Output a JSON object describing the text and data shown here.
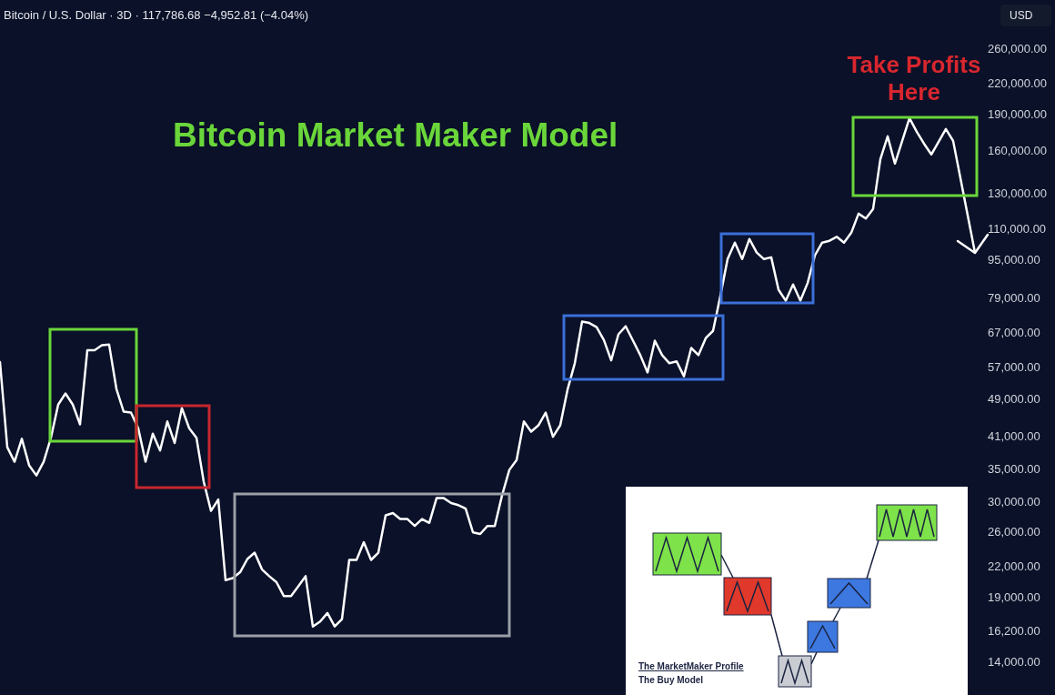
{
  "chart_data": {
    "type": "line",
    "title": "Bitcoin Market Maker Model",
    "subtitle": "Bitcoin / U.S. Dollar · 3D · 117,786.68 −4,952.81 (−4.04%)",
    "annotations": [
      "Take Profits Here",
      "USD",
      "The MarketMaker Profile",
      "The Buy Model"
    ],
    "categories": [
      null,
      null,
      null,
      null,
      null,
      null,
      null,
      null,
      null,
      null,
      null,
      null,
      null,
      null,
      null,
      null,
      null,
      null,
      null,
      null,
      null,
      null,
      null,
      null,
      null,
      null,
      null,
      null,
      null,
      null,
      null,
      null,
      null,
      null,
      null,
      null,
      null,
      null,
      null,
      null,
      null,
      null,
      null,
      null,
      null,
      null,
      null,
      null,
      null,
      null,
      null,
      null,
      null,
      null,
      null,
      null,
      null,
      null,
      null,
      null,
      null,
      null,
      null,
      null,
      null,
      null,
      null,
      null,
      null,
      null,
      null,
      null,
      null,
      null,
      null,
      null,
      null,
      null,
      null,
      null,
      null,
      null,
      null,
      null,
      null,
      null,
      null,
      null,
      null,
      null,
      null,
      null,
      null,
      null,
      null,
      null,
      null,
      null,
      null,
      null,
      null,
      null,
      null,
      null,
      null,
      null,
      null,
      null,
      null,
      null,
      null,
      null,
      null,
      null,
      null,
      null,
      null,
      null,
      null,
      null,
      null,
      null,
      null,
      null,
      null,
      null,
      null,
      null,
      null,
      null,
      null,
      null,
      null,
      null,
      null
    ],
    "series": [
      {
        "color": "#ffffff",
        "values": [
          58500,
          39000,
          36400,
          40600,
          35800,
          34100,
          36400,
          40800,
          47800,
          50400,
          47800,
          43500,
          61900,
          61900,
          63400,
          63600,
          51500,
          46200,
          46000,
          42700,
          36400,
          41600,
          38400,
          44100,
          39800,
          47000,
          42700,
          40800,
          33100,
          28800,
          30400,
          20700,
          20900,
          21500,
          22900,
          23600,
          21800,
          21100,
          20500,
          19200,
          19200,
          20100,
          21100,
          16600,
          17000,
          17700,
          16600,
          17200,
          22800,
          22800,
          24800,
          22800,
          23600,
          28200,
          28500,
          27700,
          27700,
          26800,
          27700,
          27200,
          30600,
          30600,
          29900,
          29600,
          29100,
          26000,
          25800,
          26800,
          26800,
          31000,
          35000,
          36700,
          44100,
          42000,
          43300,
          46000,
          41000,
          43300,
          51300,
          58200,
          71000,
          70500,
          69100,
          65000,
          59000,
          66800,
          69400,
          64800,
          60500,
          55700,
          64800,
          60500,
          58200,
          58700,
          54700,
          62600,
          60500,
          65600,
          67900,
          80100,
          95600,
          103400,
          95600,
          105200,
          98600,
          95600,
          96400,
          82600,
          78400,
          84700,
          78400,
          85300,
          97300,
          103400,
          104300,
          106300,
          103400,
          108400,
          118700,
          116000,
          121400,
          154000,
          171600,
          150700,
          167900,
          187100,
          175300,
          165700,
          157400,
          167200,
          177600,
          167900,
          140600,
          117800,
          98600
        ]
      }
    ],
    "log": "y",
    "ylim": [
      14000,
      260000
    ],
    "yticks": [
      {
        "value": 14000,
        "label": "14,000.00"
      },
      {
        "value": 16200,
        "label": "16,200.00"
      },
      {
        "value": 19000,
        "label": "19,000.00"
      },
      {
        "value": 22000,
        "label": "22,000.00"
      },
      {
        "value": 26000,
        "label": "26,000.00"
      },
      {
        "value": 30000,
        "label": "30,000.00"
      },
      {
        "value": 35000,
        "label": "35,000.00"
      },
      {
        "value": 41000,
        "label": "41,000.00"
      },
      {
        "value": 49000,
        "label": "49,000.00"
      },
      {
        "value": 57000,
        "label": "57,000.00"
      },
      {
        "value": 67000,
        "label": "67,000.00"
      },
      {
        "value": 79000,
        "label": "79,000.00"
      },
      {
        "value": 95000,
        "label": "95,000.00"
      },
      {
        "value": 110000,
        "label": "110,000.00"
      },
      {
        "value": 130000,
        "label": "130,000.00"
      },
      {
        "value": 160000,
        "label": "160,000.00"
      },
      {
        "value": 190000,
        "label": "190,000.00"
      },
      {
        "value": 220000,
        "label": "220,000.00"
      },
      {
        "value": 260000,
        "label": "260,000.00"
      }
    ],
    "tick_labels": "y",
    "grid": false,
    "legend": false,
    "marker": "none",
    "line_style": "solid"
  }
}
